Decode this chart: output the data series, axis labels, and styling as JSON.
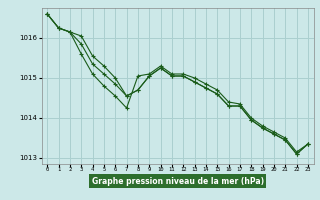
{
  "title": "Graphe pression niveau de la mer (hPa)",
  "bg_color": "#cce8e8",
  "grid_color": "#aacfcf",
  "line_color": "#1a5c1a",
  "title_bg": "#2d6e2d",
  "title_fg": "#ffffff",
  "xlim": [
    -0.5,
    23.5
  ],
  "ylim": [
    1012.85,
    1016.75
  ],
  "yticks": [
    1013,
    1014,
    1015,
    1016
  ],
  "xticks": [
    0,
    1,
    2,
    3,
    4,
    5,
    6,
    7,
    8,
    9,
    10,
    11,
    12,
    13,
    14,
    15,
    16,
    17,
    18,
    19,
    20,
    21,
    22,
    23
  ],
  "line1_x": [
    0,
    1,
    2,
    3,
    4,
    5,
    6,
    7,
    8,
    9,
    10,
    11,
    12,
    13,
    14,
    15,
    16,
    17,
    18,
    19,
    20,
    21,
    22,
    23
  ],
  "line1_y": [
    1016.6,
    1016.25,
    1016.15,
    1015.6,
    1015.1,
    1014.8,
    1014.55,
    1014.25,
    1015.05,
    1015.1,
    1015.3,
    1015.1,
    1015.1,
    1015.0,
    1014.85,
    1014.7,
    1014.4,
    1014.35,
    1014.0,
    1013.8,
    1013.65,
    1013.5,
    1013.15,
    1013.35
  ],
  "line2_x": [
    0,
    1,
    2,
    3,
    4,
    5,
    6,
    7,
    8,
    9,
    10,
    11,
    12,
    13,
    14,
    15,
    16,
    17,
    18,
    19,
    20,
    21,
    22,
    23
  ],
  "line2_y": [
    1016.6,
    1016.25,
    1016.15,
    1015.85,
    1015.35,
    1015.1,
    1014.85,
    1014.55,
    1014.7,
    1015.05,
    1015.25,
    1015.05,
    1015.05,
    1014.9,
    1014.75,
    1014.6,
    1014.3,
    1014.3,
    1013.95,
    1013.75,
    1013.6,
    1013.45,
    1013.1,
    1013.35
  ],
  "line3_x": [
    0,
    1,
    2,
    3,
    4,
    5,
    6,
    7,
    8,
    9,
    10,
    11,
    12,
    13,
    14,
    15,
    16,
    17,
    18,
    19,
    20,
    21,
    22,
    23
  ],
  "line3_y": [
    1016.6,
    1016.25,
    1016.15,
    1016.05,
    1015.55,
    1015.3,
    1015.0,
    1014.55,
    1014.7,
    1015.05,
    1015.25,
    1015.05,
    1015.05,
    1014.9,
    1014.75,
    1014.6,
    1014.3,
    1014.3,
    1013.95,
    1013.75,
    1013.6,
    1013.45,
    1013.1,
    1013.35
  ]
}
